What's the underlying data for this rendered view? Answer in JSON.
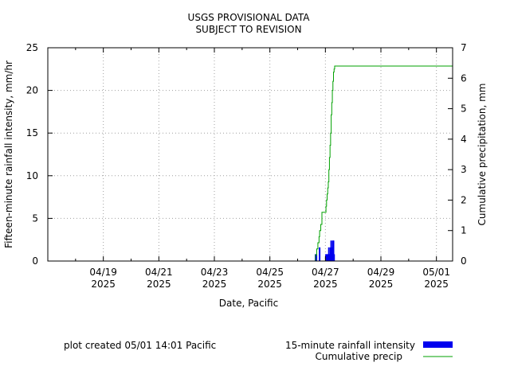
{
  "chart_data": {
    "type": "bar",
    "title": [
      "USGS PROVISIONAL DATA",
      "SUBJECT TO REVISION"
    ],
    "xlabel": "Date, Pacific",
    "ylabel": "Fifteen-minute rainfall intensity, mm/hr",
    "y2label": "Cumulative precipitation, mm",
    "xlim": [
      "2025-04-17 00:00",
      "2025-05-01 14:00"
    ],
    "ylim": [
      0,
      25
    ],
    "y2lim": [
      0,
      7
    ],
    "xticks": [
      {
        "date": "2025-04-19",
        "label": [
          "04/19",
          "2025"
        ]
      },
      {
        "date": "2025-04-21",
        "label": [
          "04/21",
          "2025"
        ]
      },
      {
        "date": "2025-04-23",
        "label": [
          "04/23",
          "2025"
        ]
      },
      {
        "date": "2025-04-25",
        "label": [
          "04/25",
          "2025"
        ]
      },
      {
        "date": "2025-04-27",
        "label": [
          "04/27",
          "2025"
        ]
      },
      {
        "date": "2025-04-29",
        "label": [
          "04/29",
          "2025"
        ]
      },
      {
        "date": "2025-05-01",
        "label": [
          "05/01",
          "2025"
        ]
      }
    ],
    "yticks": [
      "0",
      "5",
      "10",
      "15",
      "20",
      "25"
    ],
    "y2ticks": [
      "0",
      "1",
      "2",
      "3",
      "4",
      "5",
      "6",
      "7"
    ],
    "grid": true,
    "legend_position": "bottom-right",
    "series": [
      {
        "name": "15-minute rainfall intensity",
        "kind": "bar",
        "color": "#0000ee",
        "axis": "left",
        "points": [
          {
            "x": "2025-04-26 15:30",
            "y": 0.8
          },
          {
            "x": "2025-04-26 16:15",
            "y": 0.8
          },
          {
            "x": "2025-04-26 19:00",
            "y": 1.6
          },
          {
            "x": "2025-04-27 00:30",
            "y": 0.8
          },
          {
            "x": "2025-04-27 01:00",
            "y": 0.8
          },
          {
            "x": "2025-04-27 01:30",
            "y": 0.8
          },
          {
            "x": "2025-04-27 02:00",
            "y": 0.8
          },
          {
            "x": "2025-04-27 02:30",
            "y": 0.8
          },
          {
            "x": "2025-04-27 03:00",
            "y": 1.6
          },
          {
            "x": "2025-04-27 03:30",
            "y": 0.8
          },
          {
            "x": "2025-04-27 04:00",
            "y": 0.8
          },
          {
            "x": "2025-04-27 04:30",
            "y": 1.6
          },
          {
            "x": "2025-04-27 05:00",
            "y": 2.4
          },
          {
            "x": "2025-04-27 05:30",
            "y": 1.6
          },
          {
            "x": "2025-04-27 06:00",
            "y": 0.8
          },
          {
            "x": "2025-04-27 06:30",
            "y": 2.4
          },
          {
            "x": "2025-04-27 07:00",
            "y": 2.4
          },
          {
            "x": "2025-04-27 07:30",
            "y": 0.8
          }
        ]
      },
      {
        "name": "Cumulative precip",
        "kind": "step-line",
        "color": "#00a000",
        "axis": "right",
        "points": [
          {
            "x": "2025-04-17 00:00",
            "y": 0
          },
          {
            "x": "2025-04-26 15:00",
            "y": 0
          },
          {
            "x": "2025-04-26 15:30",
            "y": 0.2
          },
          {
            "x": "2025-04-26 16:30",
            "y": 0.4
          },
          {
            "x": "2025-04-26 17:30",
            "y": 0.6
          },
          {
            "x": "2025-04-26 18:30",
            "y": 0.8
          },
          {
            "x": "2025-04-26 19:00",
            "y": 1.0
          },
          {
            "x": "2025-04-26 20:00",
            "y": 1.2
          },
          {
            "x": "2025-04-26 21:00",
            "y": 1.6
          },
          {
            "x": "2025-04-27 00:00",
            "y": 1.6
          },
          {
            "x": "2025-04-27 00:30",
            "y": 1.8
          },
          {
            "x": "2025-04-27 01:00",
            "y": 2.0
          },
          {
            "x": "2025-04-27 01:30",
            "y": 2.2
          },
          {
            "x": "2025-04-27 02:00",
            "y": 2.4
          },
          {
            "x": "2025-04-27 02:30",
            "y": 2.6
          },
          {
            "x": "2025-04-27 03:00",
            "y": 3.0
          },
          {
            "x": "2025-04-27 03:30",
            "y": 3.4
          },
          {
            "x": "2025-04-27 04:00",
            "y": 3.8
          },
          {
            "x": "2025-04-27 04:30",
            "y": 4.2
          },
          {
            "x": "2025-04-27 05:00",
            "y": 4.8
          },
          {
            "x": "2025-04-27 05:30",
            "y": 5.2
          },
          {
            "x": "2025-04-27 06:00",
            "y": 5.6
          },
          {
            "x": "2025-04-27 06:30",
            "y": 5.9
          },
          {
            "x": "2025-04-27 07:00",
            "y": 6.2
          },
          {
            "x": "2025-04-27 07:30",
            "y": 6.3
          },
          {
            "x": "2025-04-27 08:00",
            "y": 6.4
          },
          {
            "x": "2025-05-01 14:00",
            "y": 6.4
          }
        ]
      }
    ]
  },
  "footer": {
    "created": "plot created 05/01 14:01 Pacific"
  }
}
